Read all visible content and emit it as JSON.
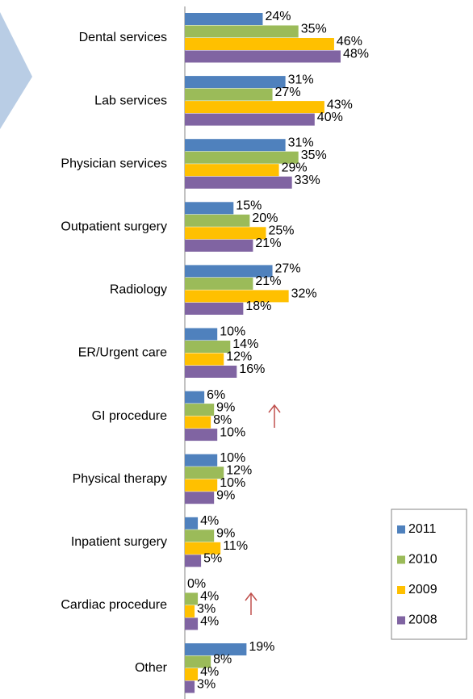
{
  "chart_data": {
    "type": "bar",
    "orientation": "horizontal",
    "categories": [
      "Dental services",
      "Lab services",
      "Physician services",
      "Outpatient surgery",
      "Radiology",
      "ER/Urgent care",
      "GI procedure",
      "Physical therapy",
      "Inpatient surgery",
      "Cardiac procedure",
      "Other"
    ],
    "series": [
      {
        "name": "2011",
        "color": "#4f81bd",
        "values": [
          24,
          31,
          31,
          15,
          27,
          10,
          6,
          10,
          4,
          0,
          19
        ],
        "value_labels": [
          "24%",
          "31%",
          "31%",
          "15%",
          "27%",
          "10%",
          "6%",
          "10%",
          "4%",
          "0%",
          "19%"
        ]
      },
      {
        "name": "2010",
        "color": "#9bbb59",
        "values": [
          35,
          27,
          35,
          20,
          21,
          14,
          9,
          12,
          9,
          4,
          8
        ],
        "value_labels": [
          "35%",
          "27%",
          "35%",
          "20%",
          "21%",
          "14%",
          "9%",
          "12%",
          "9%",
          "4%",
          "8%"
        ]
      },
      {
        "name": "2009",
        "color": "#ffc000",
        "values": [
          46,
          43,
          29,
          25,
          32,
          12,
          8,
          10,
          11,
          3,
          4
        ],
        "value_labels": [
          "46%",
          "43%",
          "29%",
          "25%",
          "32%",
          "12%",
          "8%",
          "10%",
          "11%",
          "3%",
          "4%"
        ]
      },
      {
        "name": "2008",
        "color": "#8064a2",
        "values": [
          48,
          40,
          33,
          21,
          18,
          16,
          10,
          9,
          5,
          4,
          3
        ],
        "value_labels": [
          "48%",
          "40%",
          "33%",
          "21%",
          "18%",
          "16%",
          "10%",
          "9%",
          "5%",
          "4%",
          "3%"
        ]
      }
    ],
    "legend": "right"
  }
}
